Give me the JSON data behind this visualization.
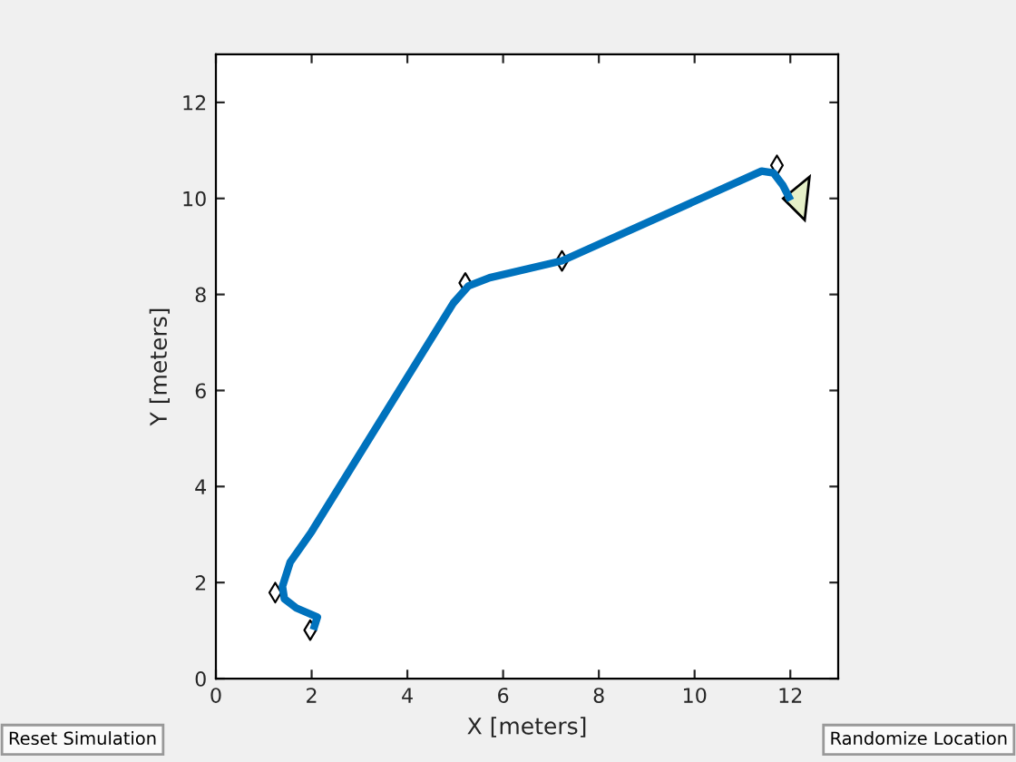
{
  "chart_data": {
    "type": "line",
    "xlabel": "X [meters]",
    "ylabel": "Y [meters]",
    "xlim": [
      0,
      13
    ],
    "ylim": [
      0,
      13
    ],
    "xticks": [
      0,
      2,
      4,
      6,
      8,
      10,
      12
    ],
    "yticks": [
      0,
      2,
      4,
      6,
      8,
      10,
      12
    ],
    "grid": false,
    "series": [
      {
        "color": "#0072bd",
        "line_style": "solid",
        "marker": "none",
        "x": [
          2.06,
          2.12,
          1.68,
          1.43,
          1.39,
          1.55,
          2.0,
          4.96,
          5.28,
          5.72,
          7.23,
          11.4,
          11.65,
          11.84,
          11.97
        ],
        "values": [
          1.09,
          1.28,
          1.47,
          1.66,
          1.92,
          2.42,
          3.06,
          7.82,
          8.18,
          8.35,
          8.7,
          10.57,
          10.53,
          10.28,
          10.03
        ]
      },
      {
        "type": "scatter",
        "color": "#000000",
        "marker": "diamond",
        "x": [
          1.97,
          1.24,
          5.21,
          7.23,
          11.72
        ],
        "values": [
          1.01,
          1.79,
          8.24,
          8.7,
          10.69
        ]
      }
    ],
    "annotations": [
      "Reset Simulation",
      "Randomize Location"
    ]
  }
}
